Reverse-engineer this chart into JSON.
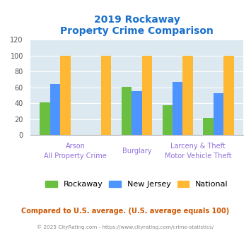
{
  "title_line1": "2019 Rockaway",
  "title_line2": "Property Crime Comparison",
  "title_color": "#1a6fcc",
  "rockaway": [
    41,
    0,
    61,
    38,
    22
  ],
  "new_jersey": [
    64,
    0,
    55,
    67,
    53
  ],
  "national": [
    100,
    100,
    100,
    100,
    100
  ],
  "bar_color_rockaway": "#6abf40",
  "bar_color_nj": "#4d94ff",
  "bar_color_national": "#ffb833",
  "ylim": [
    0,
    120
  ],
  "yticks": [
    0,
    20,
    40,
    60,
    80,
    100,
    120
  ],
  "xlabel_color": "#9370db",
  "xlabel_fontsize": 7.0,
  "background_color": "#dce9f0",
  "footer_text": "Compared to U.S. average. (U.S. average equals 100)",
  "footer_color": "#cc5500",
  "copyright_text": "© 2025 CityRating.com - https://www.cityrating.com/crime-statistics/",
  "copyright_color": "#888888",
  "legend_labels": [
    "Rockaway",
    "New Jersey",
    "National"
  ],
  "n_groups": 5
}
